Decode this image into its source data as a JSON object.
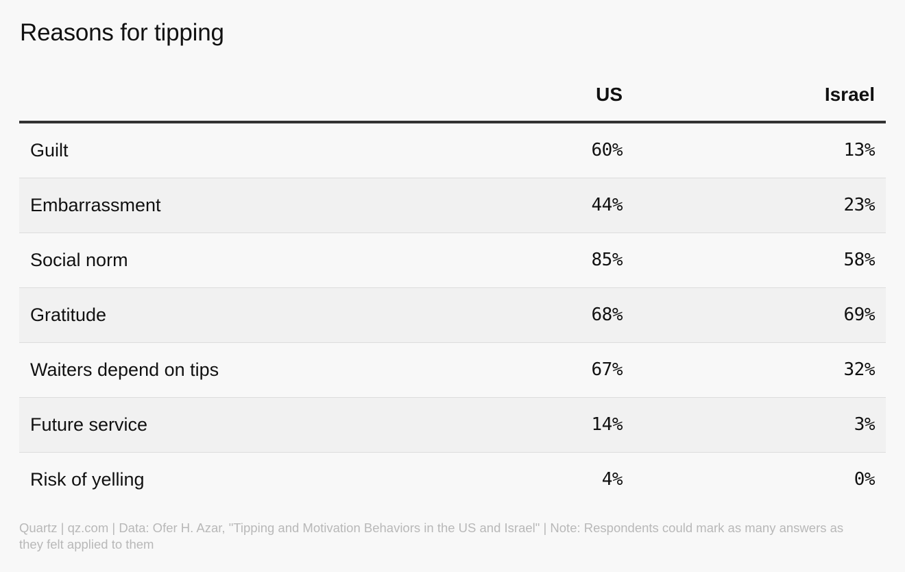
{
  "title": "Reasons for tipping",
  "columns": {
    "us": "US",
    "israel": "Israel"
  },
  "rows": [
    {
      "label": "Guilt",
      "us": "60%",
      "israel": "13%"
    },
    {
      "label": "Embarrassment",
      "us": "44%",
      "israel": "23%"
    },
    {
      "label": "Social norm",
      "us": "85%",
      "israel": "58%"
    },
    {
      "label": "Gratitude",
      "us": "68%",
      "israel": "69%"
    },
    {
      "label": "Waiters depend on tips",
      "us": "67%",
      "israel": "32%"
    },
    {
      "label": "Future service",
      "us": "14%",
      "israel": "3%"
    },
    {
      "label": "Risk of yelling",
      "us": "4%",
      "israel": "0%"
    }
  ],
  "footer": "Quartz | qz.com | Data: Ofer H. Azar, \"Tipping and Motivation Behaviors in the US and Israel\" | Note: Respondents could mark as many answers as they felt applied to them",
  "chart_data": {
    "type": "table",
    "title": "Reasons for tipping",
    "columns": [
      "US",
      "Israel"
    ],
    "categories": [
      "Guilt",
      "Embarrassment",
      "Social norm",
      "Gratitude",
      "Waiters depend on tips",
      "Future service",
      "Risk of yelling"
    ],
    "series": [
      {
        "name": "US",
        "values": [
          60,
          44,
          85,
          68,
          67,
          14,
          4
        ]
      },
      {
        "name": "Israel",
        "values": [
          13,
          23,
          58,
          69,
          32,
          3,
          0
        ]
      }
    ],
    "unit": "%"
  }
}
